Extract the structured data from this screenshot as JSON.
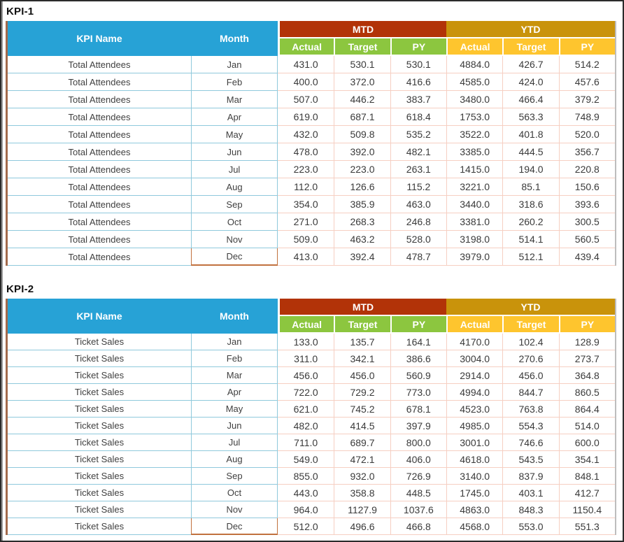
{
  "header_labels": {
    "kpi_name": "KPI Name",
    "month": "Month",
    "mtd": "MTD",
    "ytd": "YTD",
    "actual": "Actual",
    "target": "Target",
    "py": "PY"
  },
  "colors": {
    "blue_header": "#27a2d6",
    "mtd_red": "#b23308",
    "ytd_gold": "#c9930b",
    "sub_green": "#8cc63f",
    "sub_yellow": "#fec52e",
    "cyan_border": "#8fc9dc",
    "pink_border": "#f6cfc2",
    "brown_edge": "#a26a4c",
    "orange_current_month": "#c1713e",
    "gray_edge": "#bdbdbd",
    "frame": "#2b2b2b"
  },
  "tables": [
    {
      "title": "KPI-1",
      "kpi_name": "Total Attendees",
      "rows": [
        [
          "Jan",
          "431.0",
          "530.1",
          "530.1",
          "4884.0",
          "426.7",
          "514.2"
        ],
        [
          "Feb",
          "400.0",
          "372.0",
          "416.6",
          "4585.0",
          "424.0",
          "457.6"
        ],
        [
          "Mar",
          "507.0",
          "446.2",
          "383.7",
          "3480.0",
          "466.4",
          "379.2"
        ],
        [
          "Apr",
          "619.0",
          "687.1",
          "618.4",
          "1753.0",
          "563.3",
          "748.9"
        ],
        [
          "May",
          "432.0",
          "509.8",
          "535.2",
          "3522.0",
          "401.8",
          "520.0"
        ],
        [
          "Jun",
          "478.0",
          "392.0",
          "482.1",
          "3385.0",
          "444.5",
          "356.7"
        ],
        [
          "Jul",
          "223.0",
          "223.0",
          "263.1",
          "1415.0",
          "194.0",
          "220.8"
        ],
        [
          "Aug",
          "112.0",
          "126.6",
          "115.2",
          "3221.0",
          "85.1",
          "150.6"
        ],
        [
          "Sep",
          "354.0",
          "385.9",
          "463.0",
          "3440.0",
          "318.6",
          "393.6"
        ],
        [
          "Oct",
          "271.0",
          "268.3",
          "246.8",
          "3381.0",
          "260.2",
          "300.5"
        ],
        [
          "Nov",
          "509.0",
          "463.2",
          "528.0",
          "3198.0",
          "514.1",
          "560.5"
        ],
        [
          "Dec",
          "413.0",
          "392.4",
          "478.7",
          "3979.0",
          "512.1",
          "439.4"
        ]
      ]
    },
    {
      "title": "KPI-2",
      "kpi_name": "Ticket Sales",
      "rows": [
        [
          "Jan",
          "133.0",
          "135.7",
          "164.1",
          "4170.0",
          "102.4",
          "128.9"
        ],
        [
          "Feb",
          "311.0",
          "342.1",
          "386.6",
          "3004.0",
          "270.6",
          "273.7"
        ],
        [
          "Mar",
          "456.0",
          "456.0",
          "560.9",
          "2914.0",
          "456.0",
          "364.8"
        ],
        [
          "Apr",
          "722.0",
          "729.2",
          "773.0",
          "4994.0",
          "844.7",
          "860.5"
        ],
        [
          "May",
          "621.0",
          "745.2",
          "678.1",
          "4523.0",
          "763.8",
          "864.4"
        ],
        [
          "Jun",
          "482.0",
          "414.5",
          "397.9",
          "4985.0",
          "554.3",
          "514.0"
        ],
        [
          "Jul",
          "711.0",
          "689.7",
          "800.0",
          "3001.0",
          "746.6",
          "600.0"
        ],
        [
          "Aug",
          "549.0",
          "472.1",
          "406.0",
          "4618.0",
          "543.5",
          "354.1"
        ],
        [
          "Sep",
          "855.0",
          "932.0",
          "726.9",
          "3140.0",
          "837.9",
          "848.1"
        ],
        [
          "Oct",
          "443.0",
          "358.8",
          "448.5",
          "1745.0",
          "403.1",
          "412.7"
        ],
        [
          "Nov",
          "964.0",
          "1127.9",
          "1037.6",
          "4863.0",
          "848.3",
          "1150.4"
        ],
        [
          "Dec",
          "512.0",
          "496.6",
          "466.8",
          "4568.0",
          "553.0",
          "551.3"
        ]
      ]
    }
  ]
}
